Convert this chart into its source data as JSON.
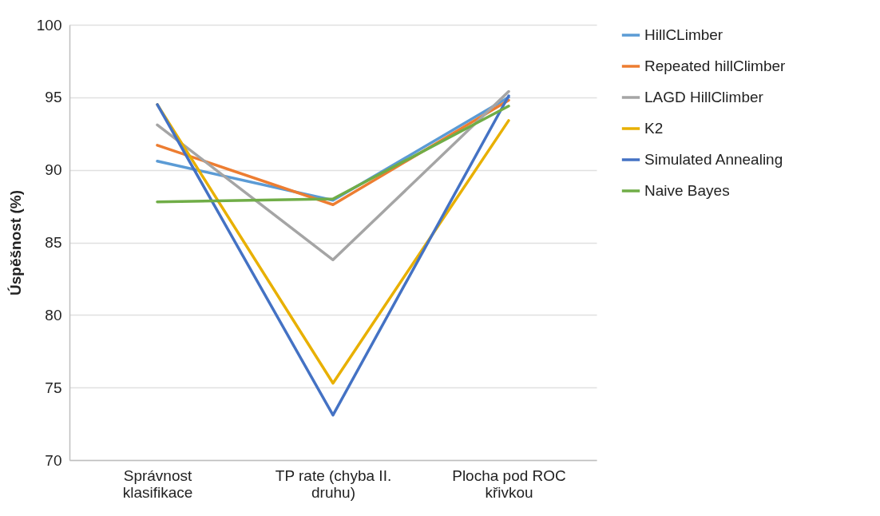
{
  "chart_data": {
    "type": "line",
    "ylabel": "Úspěšnost (%)",
    "categories": [
      "Správnost klasifikace",
      "TP rate (chyba II. druhu)",
      "Plocha pod ROC křivkou"
    ],
    "series": [
      {
        "name": "HillCLimber",
        "color": "#5b9bd5",
        "values": [
          90.6,
          87.9,
          95.0
        ]
      },
      {
        "name": "Repeated hillClimber",
        "color": "#ed7d31",
        "values": [
          91.7,
          87.6,
          94.8
        ]
      },
      {
        "name": "LAGD HillClimber",
        "color": "#a5a5a5",
        "values": [
          93.1,
          83.8,
          95.4
        ]
      },
      {
        "name": "K2",
        "color": "#e8b000",
        "values": [
          94.5,
          75.3,
          93.4
        ]
      },
      {
        "name": "Simulated Annealing",
        "color": "#4472c4",
        "values": [
          94.5,
          73.1,
          95.1
        ]
      },
      {
        "name": "Naive Bayes",
        "color": "#70ad47",
        "values": [
          87.8,
          88.0,
          94.4
        ]
      }
    ],
    "ylim": [
      70,
      100
    ],
    "yticks": [
      70,
      75,
      80,
      85,
      90,
      95,
      100
    ],
    "grid": "y",
    "legend": "right",
    "marker": "none",
    "line_style": "solid"
  }
}
